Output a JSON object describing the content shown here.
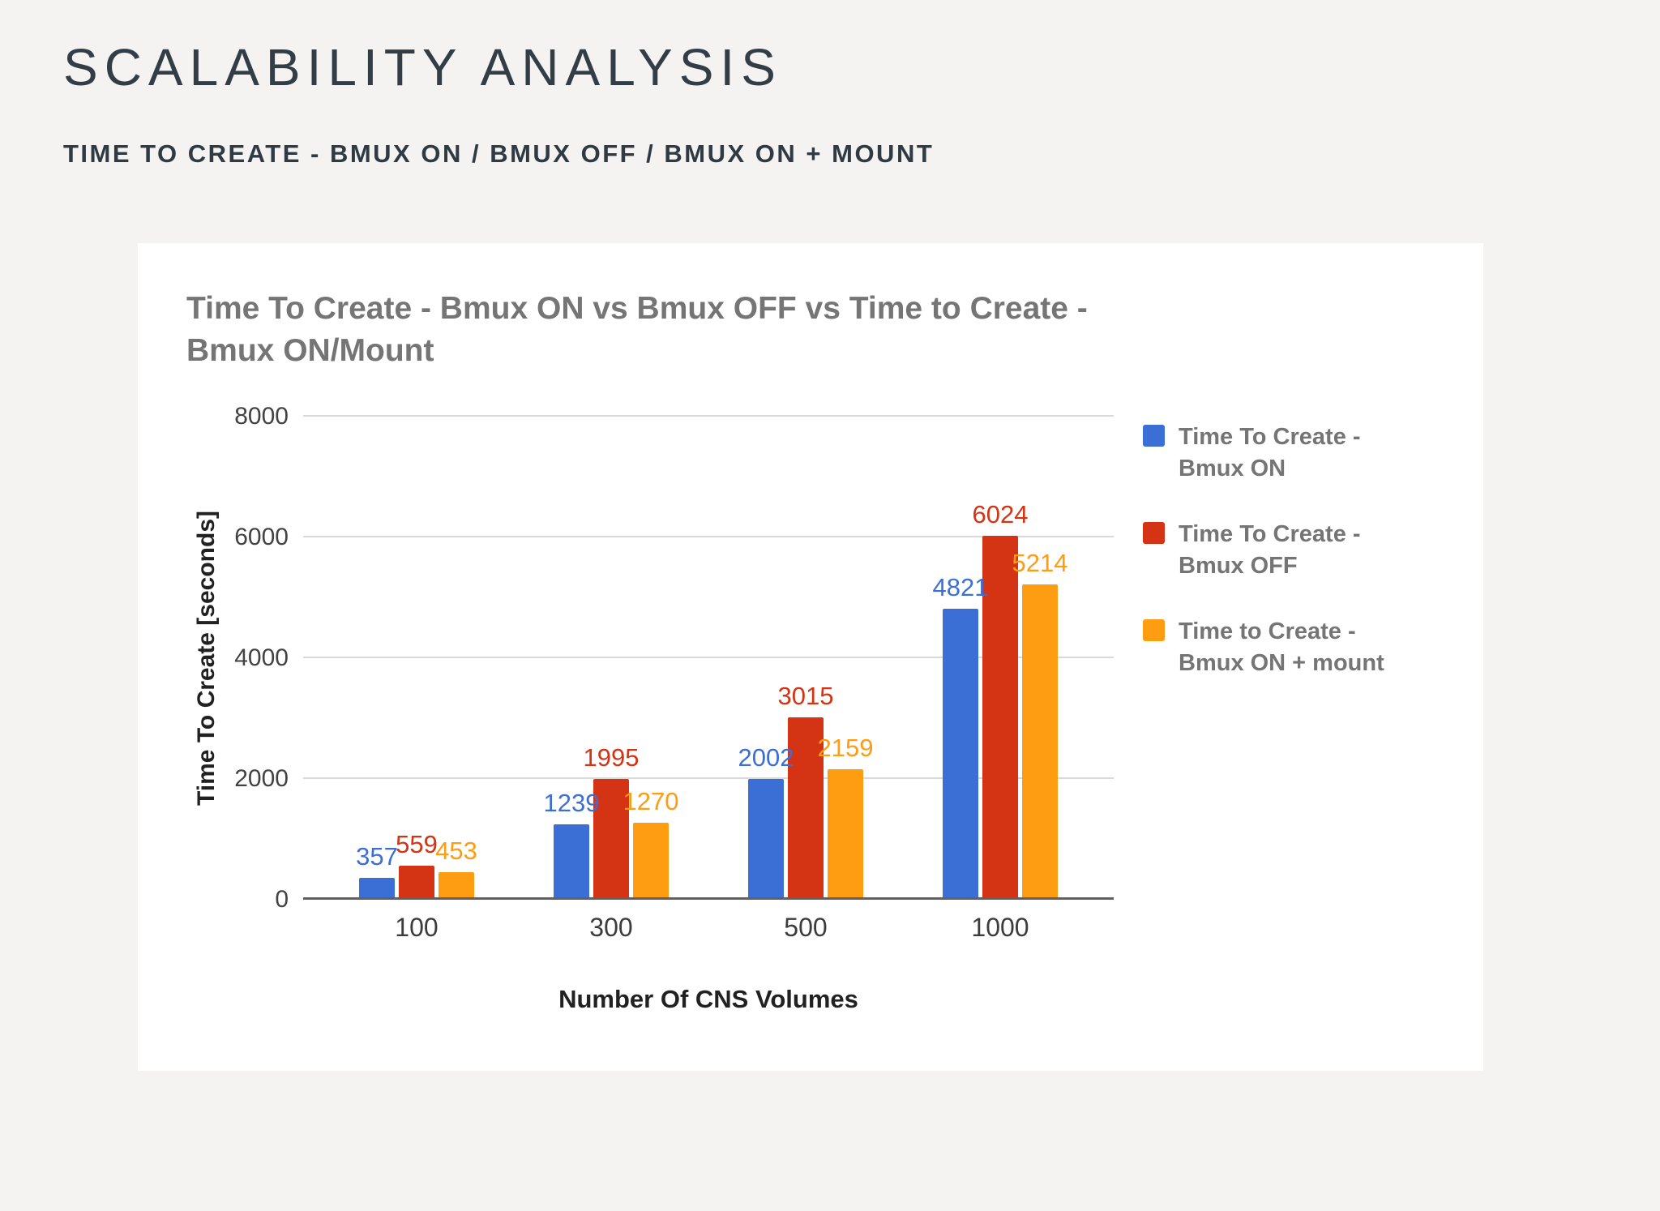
{
  "page": {
    "title": "SCALABILITY ANALYSIS",
    "subtitle": "TIME TO CREATE - BMUX ON / BMUX OFF / BMUX ON + MOUNT"
  },
  "chart_data": {
    "type": "bar",
    "title": "Time To Create - Bmux ON vs  Bmux OFF vs Time to Create - Bmux ON/Mount",
    "xlabel": "Number Of CNS Volumes",
    "ylabel": "Time To Create [seconds]",
    "categories": [
      "100",
      "300",
      "500",
      "1000"
    ],
    "series": [
      {
        "name": "Time To Create - Bmux ON",
        "color": "#3c6fd6",
        "values": [
          357,
          1239,
          2002,
          4821
        ]
      },
      {
        "name": "Time To Create - Bmux OFF",
        "color": "#d43314",
        "values": [
          559,
          1995,
          3015,
          6024
        ]
      },
      {
        "name": "Time to Create - Bmux ON + mount",
        "color": "#ff9d12",
        "values": [
          453,
          1270,
          2159,
          5214
        ]
      }
    ],
    "ylim": [
      0,
      8000
    ],
    "yticks": [
      0,
      2000,
      4000,
      6000,
      8000
    ],
    "grid": true,
    "legend_position": "right"
  }
}
